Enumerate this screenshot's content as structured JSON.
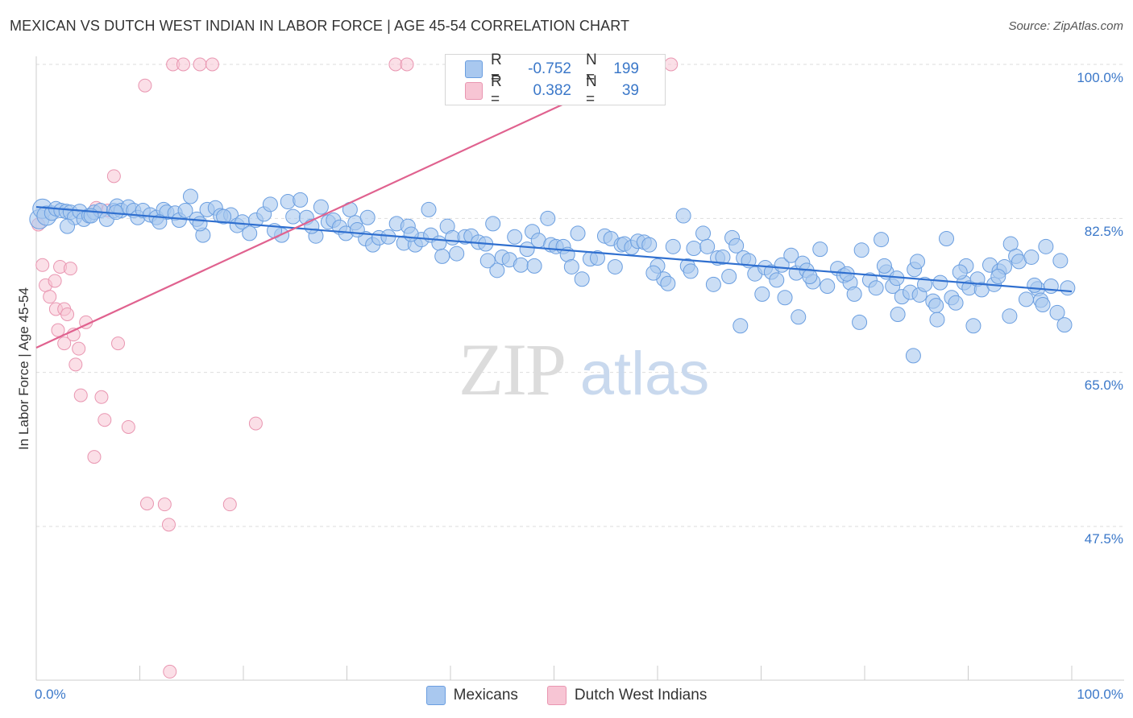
{
  "title": "MEXICAN VS DUTCH WEST INDIAN IN LABOR FORCE | AGE 45-54 CORRELATION CHART",
  "source": "Source: ZipAtlas.com",
  "colors": {
    "blue_fill": "#a9c8ef",
    "blue_stroke": "#6a9ee0",
    "blue_line": "#2f6fcf",
    "pink_fill": "#f7c5d4",
    "pink_stroke": "#e996b1",
    "pink_line": "#e0628f",
    "tick_text": "#3b78c9",
    "grid": "#dddddd"
  },
  "legend_top": {
    "rows": [
      {
        "series": "Mexicans",
        "r_label": "R =",
        "r_value": "-0.752",
        "n_label": "N =",
        "n_value": "199"
      },
      {
        "series": "Dutch West Indians",
        "r_label": "R =",
        "r_value": "0.382",
        "n_label": "N =",
        "n_value": "39"
      }
    ]
  },
  "legend_bottom": [
    "Mexicans",
    "Dutch West Indians"
  ],
  "watermark": {
    "zip": "ZIP",
    "atlas": "atlas"
  },
  "chart_data": {
    "type": "scatter",
    "title": "MEXICAN VS DUTCH WEST INDIAN IN LABOR FORCE | AGE 45-54 CORRELATION CHART",
    "xlabel": "",
    "ylabel": "In Labor Force | Age 45-54",
    "xlim": [
      0,
      100
    ],
    "ylim": [
      29.5,
      101.5
    ],
    "y_ticks": [
      {
        "value": 100.0,
        "label": "100.0%"
      },
      {
        "value": 82.5,
        "label": "82.5%"
      },
      {
        "value": 65.0,
        "label": "65.0%"
      },
      {
        "value": 47.5,
        "label": "47.5%"
      }
    ],
    "x_tick_labels": [
      {
        "value": 0,
        "label": "0.0%"
      },
      {
        "value": 100,
        "label": "100.0%"
      }
    ],
    "x_minor_ticks": [
      10,
      20,
      30,
      40,
      50,
      60,
      70,
      80,
      90,
      100
    ],
    "series": [
      {
        "name": "Mexicans",
        "r": -0.752,
        "n": 199,
        "trend": {
          "x0": 0,
          "y0": 83.8,
          "x1": 100,
          "y1": 74.2
        },
        "points": [
          [
            0.3,
            82.4
          ],
          [
            0.6,
            83.6
          ],
          [
            1.0,
            82.8
          ],
          [
            1.5,
            83.1
          ],
          [
            1.9,
            83.6
          ],
          [
            2.4,
            83.4
          ],
          [
            2.9,
            83.3
          ],
          [
            3.3,
            83.2
          ],
          [
            3.7,
            82.6
          ],
          [
            4.2,
            83.3
          ],
          [
            4.6,
            82.4
          ],
          [
            5.1,
            82.8
          ],
          [
            5.6,
            83.2
          ],
          [
            6.2,
            83.4
          ],
          [
            6.8,
            82.4
          ],
          [
            7.5,
            83.4
          ],
          [
            7.8,
            83.9
          ],
          [
            8.2,
            83.4
          ],
          [
            8.9,
            83.8
          ],
          [
            9.4,
            83.4
          ],
          [
            9.8,
            82.6
          ],
          [
            10.3,
            83.4
          ],
          [
            11.0,
            82.9
          ],
          [
            11.6,
            82.6
          ],
          [
            12.3,
            83.5
          ],
          [
            12.6,
            83.2
          ],
          [
            13.4,
            83.1
          ],
          [
            13.8,
            82.3
          ],
          [
            14.4,
            83.4
          ],
          [
            14.9,
            85.0
          ],
          [
            15.5,
            82.4
          ],
          [
            16.1,
            80.6
          ],
          [
            16.5,
            83.5
          ],
          [
            17.3,
            83.7
          ],
          [
            17.8,
            82.8
          ],
          [
            18.8,
            82.9
          ],
          [
            19.4,
            81.7
          ],
          [
            19.9,
            82.1
          ],
          [
            20.6,
            80.8
          ],
          [
            21.2,
            82.3
          ],
          [
            22.0,
            83.0
          ],
          [
            22.6,
            84.1
          ],
          [
            23.7,
            80.6
          ],
          [
            24.3,
            84.4
          ],
          [
            24.8,
            82.7
          ],
          [
            25.5,
            84.6
          ],
          [
            26.1,
            82.6
          ],
          [
            27.0,
            80.5
          ],
          [
            27.5,
            83.8
          ],
          [
            28.2,
            82.1
          ],
          [
            28.7,
            82.3
          ],
          [
            29.3,
            81.5
          ],
          [
            29.9,
            80.8
          ],
          [
            30.3,
            83.5
          ],
          [
            30.8,
            82.0
          ],
          [
            31.8,
            80.2
          ],
          [
            32.0,
            82.6
          ],
          [
            32.5,
            79.5
          ],
          [
            33.1,
            80.3
          ],
          [
            34.0,
            80.4
          ],
          [
            34.8,
            81.9
          ],
          [
            35.5,
            79.7
          ],
          [
            35.9,
            81.6
          ],
          [
            36.6,
            79.5
          ],
          [
            37.2,
            80.1
          ],
          [
            37.9,
            83.5
          ],
          [
            38.1,
            80.6
          ],
          [
            38.9,
            79.7
          ],
          [
            39.7,
            81.6
          ],
          [
            40.2,
            80.3
          ],
          [
            40.6,
            78.5
          ],
          [
            41.4,
            80.4
          ],
          [
            42.0,
            80.5
          ],
          [
            42.7,
            79.8
          ],
          [
            43.4,
            79.6
          ],
          [
            44.1,
            81.9
          ],
          [
            44.5,
            76.6
          ],
          [
            45.0,
            78.1
          ],
          [
            45.7,
            77.8
          ],
          [
            46.2,
            80.4
          ],
          [
            46.8,
            77.2
          ],
          [
            47.4,
            79.0
          ],
          [
            47.9,
            81.0
          ],
          [
            48.5,
            80.0
          ],
          [
            49.4,
            82.5
          ],
          [
            49.7,
            79.5
          ],
          [
            50.2,
            79.3
          ],
          [
            50.9,
            79.3
          ],
          [
            51.3,
            78.4
          ],
          [
            52.3,
            80.8
          ],
          [
            52.7,
            75.6
          ],
          [
            53.5,
            77.9
          ],
          [
            54.2,
            78.0
          ],
          [
            54.9,
            80.5
          ],
          [
            55.5,
            80.2
          ],
          [
            56.5,
            79.5
          ],
          [
            56.8,
            79.6
          ],
          [
            57.5,
            79.2
          ],
          [
            58.1,
            79.9
          ],
          [
            58.7,
            79.8
          ],
          [
            59.2,
            79.5
          ],
          [
            60.0,
            77.1
          ],
          [
            60.6,
            75.6
          ],
          [
            61.0,
            75.1
          ],
          [
            61.5,
            79.3
          ],
          [
            62.5,
            82.8
          ],
          [
            62.9,
            77.1
          ],
          [
            63.5,
            79.1
          ],
          [
            64.4,
            80.8
          ],
          [
            64.8,
            79.3
          ],
          [
            65.4,
            75.0
          ],
          [
            65.8,
            78.0
          ],
          [
            66.3,
            78.1
          ],
          [
            67.2,
            80.3
          ],
          [
            67.6,
            79.4
          ],
          [
            68.3,
            78.0
          ],
          [
            68.8,
            77.7
          ],
          [
            69.4,
            76.2
          ],
          [
            70.1,
            73.9
          ],
          [
            70.4,
            76.9
          ],
          [
            71.0,
            76.4
          ],
          [
            72.0,
            77.2
          ],
          [
            72.3,
            73.5
          ],
          [
            72.9,
            78.3
          ],
          [
            73.4,
            76.3
          ],
          [
            74.0,
            77.4
          ],
          [
            74.4,
            76.6
          ],
          [
            75.0,
            75.3
          ],
          [
            75.7,
            79.0
          ],
          [
            76.4,
            74.8
          ],
          [
            77.4,
            76.8
          ],
          [
            78.0,
            76.0
          ],
          [
            78.6,
            75.2
          ],
          [
            79.0,
            73.9
          ],
          [
            79.7,
            78.9
          ],
          [
            80.5,
            75.5
          ],
          [
            81.1,
            74.6
          ],
          [
            81.6,
            80.1
          ],
          [
            82.1,
            76.4
          ],
          [
            82.7,
            74.8
          ],
          [
            83.1,
            75.7
          ],
          [
            83.6,
            73.6
          ],
          [
            84.4,
            74.1
          ],
          [
            84.8,
            76.7
          ],
          [
            85.3,
            73.8
          ],
          [
            85.8,
            75.0
          ],
          [
            86.6,
            73.1
          ],
          [
            86.9,
            72.6
          ],
          [
            87.3,
            75.2
          ],
          [
            87.9,
            80.2
          ],
          [
            88.4,
            73.5
          ],
          [
            88.8,
            72.9
          ],
          [
            89.6,
            75.2
          ],
          [
            89.8,
            77.1
          ],
          [
            90.1,
            74.6
          ],
          [
            90.9,
            75.6
          ],
          [
            91.3,
            74.4
          ],
          [
            92.1,
            77.2
          ],
          [
            92.5,
            75.0
          ],
          [
            93.0,
            76.5
          ],
          [
            93.5,
            77.0
          ],
          [
            94.1,
            79.6
          ],
          [
            94.6,
            78.2
          ],
          [
            94.9,
            77.6
          ],
          [
            95.6,
            73.3
          ],
          [
            96.1,
            78.1
          ],
          [
            96.7,
            74.5
          ],
          [
            97.0,
            73.2
          ],
          [
            97.5,
            79.3
          ],
          [
            98.0,
            74.8
          ],
          [
            98.6,
            71.8
          ],
          [
            98.9,
            77.7
          ],
          [
            99.3,
            70.4
          ],
          [
            99.6,
            74.6
          ],
          [
            3.0,
            81.6
          ],
          [
            5.3,
            82.8
          ],
          [
            7.7,
            83.2
          ],
          [
            11.9,
            82.1
          ],
          [
            15.8,
            81.9
          ],
          [
            18.1,
            82.7
          ],
          [
            23.0,
            81.1
          ],
          [
            26.6,
            81.6
          ],
          [
            31.0,
            81.2
          ],
          [
            36.2,
            80.7
          ],
          [
            39.2,
            78.2
          ],
          [
            43.6,
            77.7
          ],
          [
            48.1,
            77.1
          ],
          [
            51.7,
            77.0
          ],
          [
            55.9,
            77.0
          ],
          [
            59.6,
            76.3
          ],
          [
            63.2,
            76.5
          ],
          [
            66.9,
            75.9
          ],
          [
            71.5,
            75.5
          ],
          [
            74.7,
            75.9
          ],
          [
            78.3,
            76.2
          ],
          [
            81.9,
            77.1
          ],
          [
            85.1,
            77.6
          ],
          [
            89.2,
            76.4
          ],
          [
            92.9,
            75.9
          ],
          [
            96.4,
            74.9
          ],
          [
            68.0,
            70.3
          ],
          [
            73.6,
            71.3
          ],
          [
            79.5,
            70.7
          ],
          [
            83.2,
            71.6
          ],
          [
            87.0,
            71.0
          ],
          [
            90.5,
            70.3
          ],
          [
            94.0,
            71.4
          ],
          [
            97.2,
            72.7
          ],
          [
            84.7,
            66.9
          ]
        ]
      },
      {
        "name": "Dutch West Indians",
        "r": 0.382,
        "n": 39,
        "trend": {
          "x0": 0,
          "y0": 67.8,
          "x1": 57,
          "y1": 98.8
        },
        "points": [
          [
            0.2,
            81.8
          ],
          [
            0.6,
            77.2
          ],
          [
            0.9,
            74.9
          ],
          [
            1.3,
            73.6
          ],
          [
            1.8,
            75.4
          ],
          [
            1.9,
            72.2
          ],
          [
            2.1,
            69.8
          ],
          [
            2.3,
            77.0
          ],
          [
            2.7,
            72.2
          ],
          [
            3.0,
            71.6
          ],
          [
            3.3,
            76.8
          ],
          [
            3.6,
            69.3
          ],
          [
            3.8,
            65.9
          ],
          [
            4.3,
            62.4
          ],
          [
            4.8,
            70.7
          ],
          [
            5.6,
            55.4
          ],
          [
            6.3,
            62.2
          ],
          [
            6.6,
            59.6
          ],
          [
            7.5,
            87.3
          ],
          [
            7.9,
            68.3
          ],
          [
            8.9,
            58.8
          ],
          [
            10.5,
            97.6
          ],
          [
            10.7,
            50.1
          ],
          [
            12.4,
            50.0
          ],
          [
            12.8,
            47.7
          ],
          [
            13.2,
            100.0
          ],
          [
            14.2,
            100.0
          ],
          [
            15.8,
            100.0
          ],
          [
            17.0,
            100.0
          ],
          [
            18.7,
            50.0
          ],
          [
            21.2,
            59.2
          ],
          [
            34.7,
            100.0
          ],
          [
            35.8,
            100.0
          ],
          [
            61.3,
            100.0
          ],
          [
            5.8,
            83.7
          ],
          [
            6.9,
            83.4
          ],
          [
            2.7,
            68.3
          ],
          [
            4.1,
            67.7
          ],
          [
            12.9,
            31.0
          ]
        ]
      }
    ]
  }
}
